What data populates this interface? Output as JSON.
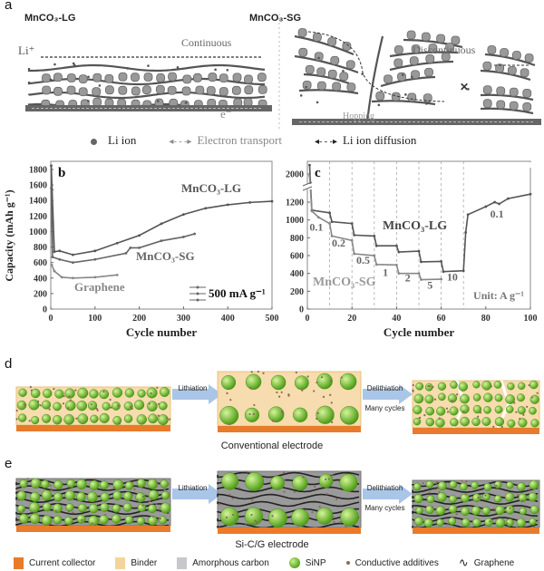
{
  "panel_a": {
    "label": "a",
    "left_title": "MnCO₃-LG",
    "right_title": "MnCO₃-SG",
    "li_label": "Li⁺",
    "continuous": "Continuous",
    "discontinuous": "Discontinuous",
    "e_label": "e⁻",
    "hopping": "Hopping",
    "legend": [
      {
        "label": "Li ion",
        "icon": "dot-icon"
      },
      {
        "label": "Electron transport",
        "icon": "dashed-double-arrow-icon"
      },
      {
        "label": "Li ion diffusion",
        "icon": "dashed-double-arrow-icon"
      }
    ]
  },
  "chart_data": [
    {
      "panel_label": "b",
      "type": "line",
      "xlabel": "Cycle number",
      "ylabel": "Capacity (mAh g⁻¹)",
      "xlim": [
        0,
        500
      ],
      "ylim": [
        0,
        1900
      ],
      "xticks": [
        0,
        100,
        200,
        300,
        400,
        500
      ],
      "yticks": [
        0,
        200,
        400,
        600,
        800,
        1000,
        1200,
        1400,
        1600,
        1800
      ],
      "grid": false,
      "legend_text": "500 mA g⁻¹",
      "legend_position": "bottom-right",
      "series": [
        {
          "name": "MnCO₃-LG",
          "color": "#555555",
          "points": [
            [
              1,
              1850
            ],
            [
              3,
              1540
            ],
            [
              8,
              740
            ],
            [
              20,
              750
            ],
            [
              50,
              700
            ],
            [
              100,
              750
            ],
            [
              150,
              850
            ],
            [
              200,
              950
            ],
            [
              250,
              1100
            ],
            [
              300,
              1220
            ],
            [
              350,
              1300
            ],
            [
              400,
              1345
            ],
            [
              450,
              1375
            ],
            [
              500,
              1390
            ]
          ]
        },
        {
          "name": "MnCO₃-SG",
          "color": "#666666",
          "points": [
            [
              1,
              1560
            ],
            [
              4,
              670
            ],
            [
              20,
              640
            ],
            [
              50,
              600
            ],
            [
              100,
              640
            ],
            [
              170,
              720
            ],
            [
              180,
              790
            ],
            [
              200,
              790
            ],
            [
              250,
              880
            ],
            [
              300,
              930
            ],
            [
              325,
              970
            ]
          ]
        },
        {
          "name": "Graphene",
          "color": "#888888",
          "points": [
            [
              2,
              570
            ],
            [
              8,
              490
            ],
            [
              25,
              410
            ],
            [
              50,
              400
            ],
            [
              100,
              410
            ],
            [
              150,
              440
            ]
          ]
        }
      ]
    },
    {
      "panel_label": "c",
      "type": "line",
      "xlabel": "Cycle number",
      "xlim": [
        0,
        100
      ],
      "ylim": [
        0,
        2100
      ],
      "axis_break": [
        1300,
        1900
      ],
      "xticks": [
        0,
        20,
        40,
        60,
        80,
        100
      ],
      "yticks": [
        0,
        200,
        400,
        600,
        800,
        1000,
        1200,
        2000
      ],
      "vlines": [
        10,
        20,
        30,
        40,
        50,
        60,
        70
      ],
      "unit_label": "Unit: A g⁻¹",
      "series": [
        {
          "name": "MnCO₃-LG",
          "color": "#555555",
          "points": [
            [
              1,
              2100
            ],
            [
              2,
              1110
            ],
            [
              10,
              1080
            ],
            [
              11,
              980
            ],
            [
              20,
              960
            ],
            [
              21,
              830
            ],
            [
              30,
              820
            ],
            [
              31,
              710
            ],
            [
              40,
              710
            ],
            [
              41,
              640
            ],
            [
              50,
              650
            ],
            [
              51,
              530
            ],
            [
              60,
              535
            ],
            [
              61,
              420
            ],
            [
              70,
              430
            ],
            [
              71,
              860
            ],
            [
              72,
              1060
            ],
            [
              80,
              1150
            ],
            [
              84,
              1200
            ],
            [
              86,
              1180
            ],
            [
              90,
              1240
            ],
            [
              100,
              1290
            ]
          ]
        },
        {
          "name": "MnCO₃-SG",
          "color": "#888888",
          "points": [
            [
              1,
              1980
            ],
            [
              2,
              1100
            ],
            [
              5,
              1030
            ],
            [
              10,
              960
            ],
            [
              11,
              820
            ],
            [
              20,
              770
            ],
            [
              21,
              620
            ],
            [
              30,
              600
            ],
            [
              31,
              500
            ],
            [
              40,
              495
            ],
            [
              41,
              400
            ],
            [
              50,
              400
            ],
            [
              51,
              330
            ],
            [
              60,
              335
            ]
          ]
        }
      ],
      "rate_labels": [
        {
          "text": "0.1",
          "x": 4,
          "y": 880
        },
        {
          "text": "0.2",
          "x": 14,
          "y": 700
        },
        {
          "text": "0.5",
          "x": 25,
          "y": 510
        },
        {
          "text": "1",
          "x": 35,
          "y": 370
        },
        {
          "text": "2",
          "x": 45,
          "y": 310
        },
        {
          "text": "5",
          "x": 55,
          "y": 230
        },
        {
          "text": "10",
          "x": 65,
          "y": 320
        },
        {
          "text": "0.1",
          "x": 85,
          "y": 1030
        }
      ]
    }
  ],
  "panel_d": {
    "label": "d",
    "arrow1": "Lithiation",
    "arrow2_line1": "Delithiation",
    "arrow2_line2": "Many cycles",
    "caption": "Conventional electrode"
  },
  "panel_e": {
    "label": "e",
    "arrow1": "Lithiation",
    "arrow2_line1": "Delithiation",
    "arrow2_line2": "Many cycles",
    "caption": "Si-C/G electrode"
  },
  "legend": [
    {
      "label": "Current collector",
      "color": "#e87b2c"
    },
    {
      "label": "Binder",
      "color": "#f5d49b"
    },
    {
      "label": "Amorphous carbon",
      "color": "#c8c8cc"
    },
    {
      "label": "SiNP",
      "color": "#6cbf2a"
    },
    {
      "label": "Conductive additives",
      "color": "#8a6a55"
    },
    {
      "label": "Graphene",
      "color": "#222222"
    }
  ]
}
